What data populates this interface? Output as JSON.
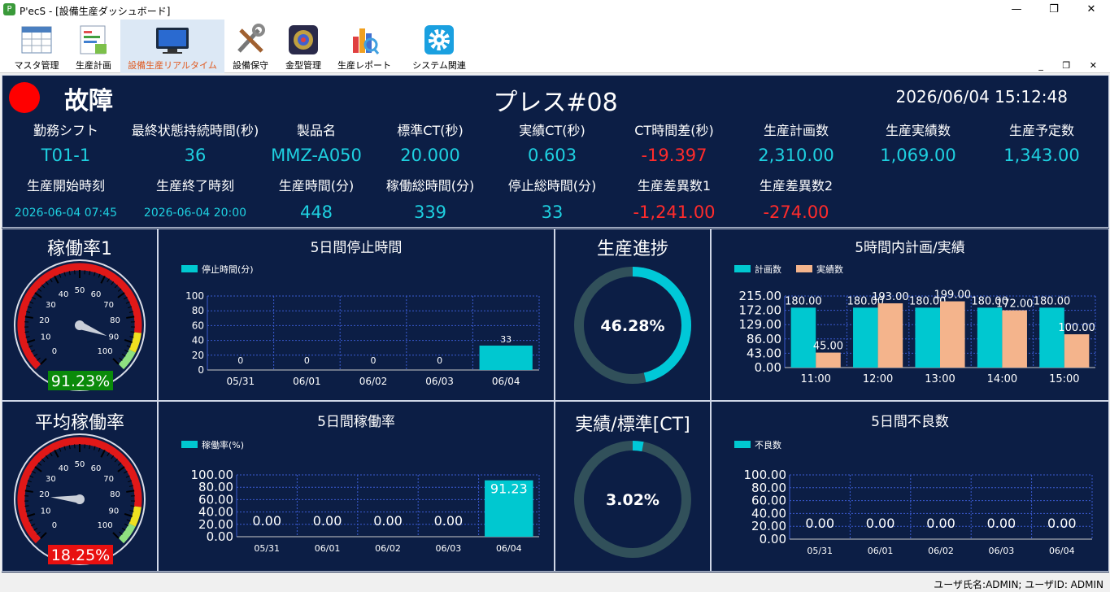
{
  "window": {
    "title": "P'ecS - [設備生産ダッシュボード]",
    "app_icon": "app-logo-icon",
    "buttons": {
      "minimize": "—",
      "maximize": "❐",
      "close": "✕"
    }
  },
  "toolbar": {
    "items": [
      {
        "label": "マスタ管理",
        "icon": "master-table-icon"
      },
      {
        "label": "生産計画",
        "icon": "production-plan-icon"
      },
      {
        "label": "設備生産リアルタイム",
        "icon": "monitor-icon",
        "active": true
      },
      {
        "label": "設備保守",
        "icon": "tools-icon"
      },
      {
        "label": "金型管理",
        "icon": "mold-icon"
      },
      {
        "label": "生産レポート",
        "icon": "report-icon"
      },
      {
        "label": "システム関連",
        "icon": "gear-icon"
      }
    ],
    "mdi": "_ ❐ ✕"
  },
  "header": {
    "status_text": "故障",
    "status_color": "#ff0000",
    "machine": "プレス#08",
    "datetime": "2026/06/04 15:12:48"
  },
  "info": {
    "row1": [
      {
        "label": "勤務シフト",
        "value": "T01-1"
      },
      {
        "label": "最終状態持続時間(秒)",
        "value": "36"
      },
      {
        "label": "製品名",
        "value": "MMZ-A050"
      },
      {
        "label": "標準CT(秒)",
        "value": "20.000"
      },
      {
        "label": "実績CT(秒)",
        "value": "0.603"
      },
      {
        "label": "CT時間差(秒)",
        "value": "-19.397",
        "color": "red"
      },
      {
        "label": "生産計画数",
        "value": "2,310.00"
      },
      {
        "label": "生産実績数",
        "value": "1,069.00"
      },
      {
        "label": "生産予定数",
        "value": "1,343.00"
      }
    ],
    "row2": [
      {
        "label": "生産開始時刻",
        "value": "2026-06-04 07:45",
        "size": "small"
      },
      {
        "label": "生産終了時刻",
        "value": "2026-06-04 20:00",
        "size": "small"
      },
      {
        "label": "生産時間(分)",
        "value": "448"
      },
      {
        "label": "稼働総時間(分)",
        "value": "339"
      },
      {
        "label": "停止総時間(分)",
        "value": "33"
      },
      {
        "label": "生産差異数1",
        "value": "-1,241.00",
        "color": "red"
      },
      {
        "label": "生産差異数2",
        "value": "-274.00",
        "color": "red"
      }
    ]
  },
  "gauges": [
    {
      "title": "稼働率1",
      "value": 91.23,
      "display": "91.23%",
      "badge_color": "#0a8a0a",
      "ticks": [
        "0",
        "10",
        "20",
        "30",
        "40",
        "50",
        "60",
        "70",
        "80",
        "90",
        "100"
      ]
    },
    {
      "title": "平均稼働率",
      "value": 18.25,
      "display": "18.25%",
      "badge_color": "#e81010",
      "ticks": [
        "0",
        "10",
        "20",
        "30",
        "40",
        "50",
        "60",
        "70",
        "80",
        "90",
        "100"
      ]
    }
  ],
  "donuts": [
    {
      "title": "生産進捗",
      "value": 46.28,
      "display": "46.28%"
    },
    {
      "title": "実績/標準[CT]",
      "value": 3.02,
      "display": "3.02%"
    }
  ],
  "chart_data": [
    {
      "id": "stop",
      "type": "bar",
      "title": "5日間停止時間",
      "legend": [
        "停止時間(分)"
      ],
      "categories": [
        "05/31",
        "06/01",
        "06/02",
        "06/03",
        "06/04"
      ],
      "values": [
        0,
        0,
        0,
        0,
        33
      ],
      "labels": [
        "0",
        "0",
        "0",
        "0",
        "33"
      ],
      "ylim": [
        0,
        100
      ],
      "yticks": [
        "0",
        "20",
        "40",
        "60",
        "80",
        "100"
      ],
      "color": "#00c8d0"
    },
    {
      "id": "hourly",
      "type": "bar",
      "title": "5時間内計画/実績",
      "legend": [
        "計画数",
        "実績数"
      ],
      "categories": [
        "11:00",
        "12:00",
        "13:00",
        "14:00",
        "15:00"
      ],
      "series": [
        {
          "name": "計画数",
          "values": [
            180,
            180,
            180,
            180,
            180
          ],
          "labels": [
            "180.00",
            "180.00",
            "180.00",
            "180.00",
            "180.00"
          ],
          "color": "#00c8d0"
        },
        {
          "name": "実績数",
          "values": [
            45,
            193,
            199,
            172,
            100
          ],
          "labels": [
            "45.00",
            "193.00",
            "199.00",
            "172.00",
            "100.00"
          ],
          "color": "#f4b48c"
        }
      ],
      "ylim": [
        0,
        215
      ],
      "yticks": [
        "0.00",
        "43.00",
        "86.00",
        "129.00",
        "172.00",
        "215.00"
      ]
    },
    {
      "id": "rate",
      "type": "bar",
      "title": "5日間稼働率",
      "legend": [
        "稼働率(%)"
      ],
      "categories": [
        "05/31",
        "06/01",
        "06/02",
        "06/03",
        "06/04"
      ],
      "values": [
        0,
        0,
        0,
        0,
        91.23
      ],
      "labels": [
        "0.00",
        "0.00",
        "0.00",
        "0.00",
        "91.23"
      ],
      "ylim": [
        0,
        100
      ],
      "yticks": [
        "0.00",
        "20.00",
        "40.00",
        "60.00",
        "80.00",
        "100.00"
      ],
      "color": "#00c8d0"
    },
    {
      "id": "defect",
      "type": "bar",
      "title": "5日間不良数",
      "legend": [
        "不良数"
      ],
      "categories": [
        "05/31",
        "06/01",
        "06/02",
        "06/03",
        "06/04"
      ],
      "values": [
        0,
        0,
        0,
        0,
        0
      ],
      "labels": [
        "0.00",
        "0.00",
        "0.00",
        "0.00",
        "0.00"
      ],
      "ylim": [
        0,
        100
      ],
      "yticks": [
        "0.00",
        "20.00",
        "40.00",
        "60.00",
        "80.00",
        "100.00"
      ],
      "color": "#00c8d0"
    }
  ],
  "status": {
    "user": "ユーザ氏名:ADMIN; ユーザID: ADMIN"
  }
}
